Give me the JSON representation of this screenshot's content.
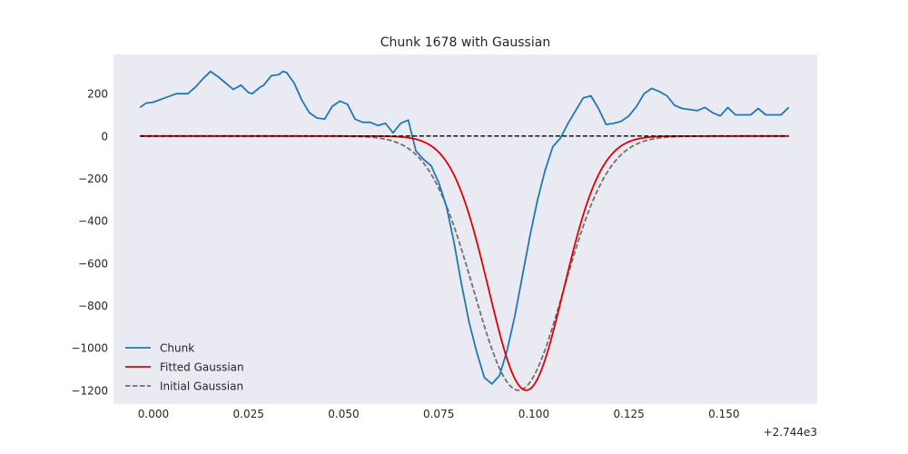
{
  "chart_data": {
    "type": "line",
    "title": "Chunk 1678 with Gaussian",
    "xlabel": "",
    "ylabel": "",
    "x_offset_label": "+2.744e3",
    "xlim": [
      -0.0105,
      0.1745
    ],
    "ylim": [
      -1265,
      385
    ],
    "xticks": [
      0.0,
      0.025,
      0.05,
      0.075,
      0.1,
      0.125,
      0.15
    ],
    "xtick_labels": [
      "0.000",
      "0.025",
      "0.050",
      "0.075",
      "0.100",
      "0.125",
      "0.150"
    ],
    "yticks": [
      200,
      0,
      -200,
      -400,
      -600,
      -800,
      -1000,
      -1200
    ],
    "ytick_labels": [
      "200",
      "0",
      "−200",
      "−400",
      "−600",
      "−800",
      "−1000",
      "−1200"
    ],
    "grid": false,
    "legend_position": "lower-left",
    "series": [
      {
        "name": "Chunk",
        "color": "#1f77b4",
        "style": "solid",
        "x": [
          -0.0035,
          -0.002,
          0.0,
          0.003,
          0.006,
          0.009,
          0.011,
          0.013,
          0.015,
          0.017,
          0.019,
          0.021,
          0.023,
          0.025,
          0.026,
          0.028,
          0.029,
          0.031,
          0.033,
          0.034,
          0.035,
          0.037,
          0.039,
          0.041,
          0.043,
          0.045,
          0.047,
          0.049,
          0.051,
          0.053,
          0.055,
          0.057,
          0.059,
          0.061,
          0.063,
          0.065,
          0.067,
          0.069,
          0.071,
          0.073,
          0.075,
          0.077,
          0.079,
          0.081,
          0.083,
          0.085,
          0.087,
          0.089,
          0.091,
          0.093,
          0.095,
          0.097,
          0.099,
          0.101,
          0.103,
          0.105,
          0.107,
          0.109,
          0.111,
          0.113,
          0.115,
          0.117,
          0.119,
          0.121,
          0.123,
          0.125,
          0.127,
          0.129,
          0.131,
          0.133,
          0.135,
          0.137,
          0.139,
          0.141,
          0.143,
          0.145,
          0.147,
          0.149,
          0.151,
          0.153,
          0.155,
          0.157,
          0.159,
          0.161,
          0.163,
          0.165,
          0.167
        ],
        "y": [
          135,
          155,
          160,
          180,
          200,
          200,
          230,
          270,
          305,
          280,
          250,
          220,
          240,
          205,
          200,
          230,
          240,
          285,
          290,
          305,
          300,
          250,
          170,
          110,
          85,
          80,
          140,
          165,
          150,
          80,
          65,
          65,
          50,
          60,
          15,
          60,
          75,
          -70,
          -110,
          -140,
          -220,
          -330,
          -500,
          -700,
          -880,
          -1020,
          -1140,
          -1170,
          -1130,
          -1010,
          -850,
          -660,
          -470,
          -300,
          -160,
          -50,
          -10,
          60,
          120,
          180,
          190,
          130,
          55,
          60,
          70,
          95,
          140,
          200,
          225,
          210,
          190,
          145,
          130,
          125,
          120,
          135,
          110,
          95,
          135,
          100,
          100,
          100,
          130,
          100,
          100,
          100,
          135
        ]
      },
      {
        "name": "Fitted Gaussian",
        "color": "#e00000",
        "style": "solid",
        "gaussian": {
          "amplitude": -1200,
          "mean": 0.098,
          "sigma": 0.0098
        }
      },
      {
        "name": "Initial Gaussian",
        "color": "#707070",
        "style": "dashed",
        "gaussian": {
          "amplitude": -1200,
          "mean": 0.096,
          "sigma": 0.0118
        }
      }
    ],
    "reference_line": {
      "y": 0,
      "color": "#000000",
      "style": "dashed"
    }
  }
}
